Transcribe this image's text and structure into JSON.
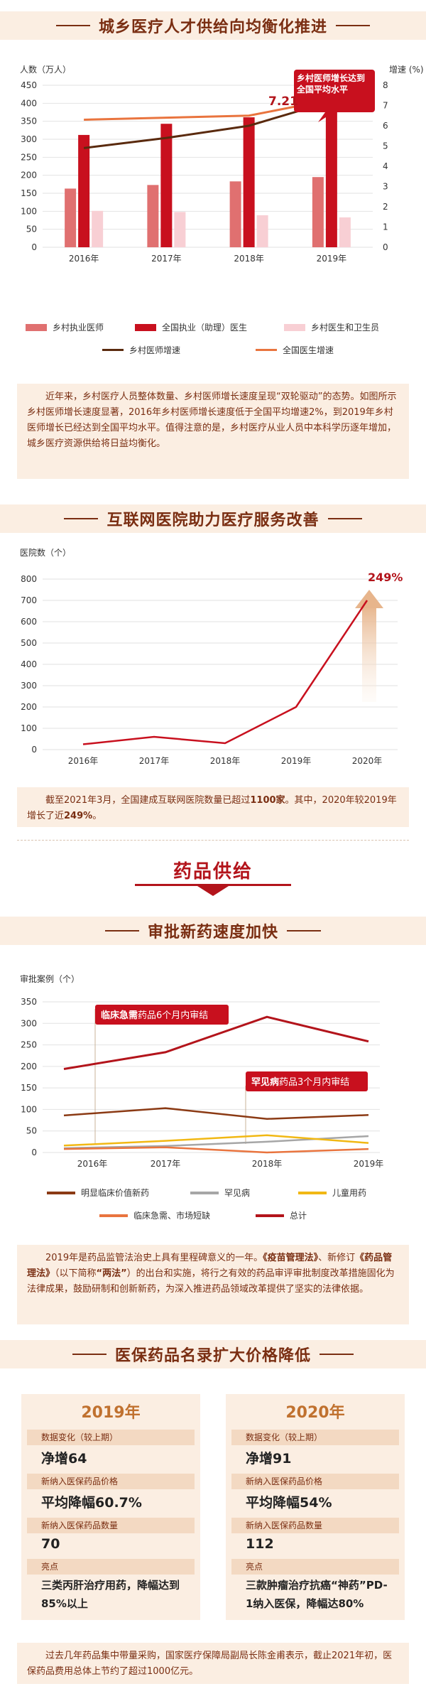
{
  "section1": {
    "title": "城乡医疗人才供给向均衡化推进",
    "left_axis_label": "人数（万人）",
    "right_axis_label": "增速 (%)",
    "callout": "乡村医师增长达到全国平均水平",
    "callout_value": "7.21",
    "legend": [
      "乡村执业医师",
      "全国执业（助理）医生",
      "乡村医生和卫生员",
      "乡村医师增速",
      "全国医生增速"
    ],
    "note": "近年来，乡村医疗人员整体数量、乡村医师增长速度呈现“双轮驱动”的态势。如图所示乡村医师增长速度显著，2016年乡村医师增长速度低于全国平均增速2%，到2019年乡村医师增长已经达到全国平均水平。值得注意的是，乡村医疗从业人员中本科学历逐年增加，城乡医疗资源供给将日益均衡化。"
  },
  "section2": {
    "title": "互联网医院助力医疗服务改善",
    "axis_label": "医院数（个）",
    "growth_label": "249%",
    "note_pre": "截至2021年3月，全国建成互联网医院数量已超过",
    "note_b1": "1100家",
    "note_mid": "。其中，2020年较2019年增长了近",
    "note_b2": "249%",
    "note_end": "。"
  },
  "supply": {
    "title": "药品供给"
  },
  "section3": {
    "title": "审批新药速度加快",
    "axis_label": "审批案例（个）",
    "callout1_bold": "临床急需",
    "callout1_rest": "药品6个月内审结",
    "callout2_bold": "罕见病",
    "callout2_rest": "药品3个月内审结",
    "legend": [
      "明显临床价值新药",
      "罕见病",
      "儿童用药",
      "临床急需、市场短缺",
      "总计"
    ],
    "note_p1": "2019年是药品监管法治史上具有里程碑意义的一年。",
    "note_b1": "《疫苗管理法》",
    "note_p2": "、新修订",
    "note_b2": "《药品管理法》",
    "note_p3": "（以下简称",
    "note_b3": "“两法”",
    "note_p4": "）的出台和实施，将行之有效的药品审评审批制度改革措施固化为法律成果，鼓励研制和创新新药，为深入推进药品领域改革提供了坚实的法律依据。"
  },
  "section4": {
    "title": "医保药品名录扩大价格降低",
    "cards": [
      {
        "year": "2019年",
        "l1": "数据变化（较上期）",
        "v1": "净增64",
        "l2": "新纳入医保药品价格",
        "v2": "平均降幅60.7%",
        "l3": "新纳入医保药品数量",
        "v3": "70",
        "l4": "亮点",
        "v4": "三类丙肝治疗用药，降幅达到85%以上"
      },
      {
        "year": "2020年",
        "l1": "数据变化（较上期）",
        "v1": "净增91",
        "l2": "新纳入医保药品价格",
        "v2": "平均降幅54%",
        "l3": "新纳入医保药品数量",
        "v3": "112",
        "l4": "亮点",
        "v4": "三款肿瘤治疗抗癌“神药”PD-1纳入医保，降幅达80%"
      }
    ],
    "note": "过去几年药品集中带量采购，国家医疗保障局副局长陈金甫表示，截止2021年初，医保药品费用总体上节约了超过1000亿元。"
  },
  "colors": {
    "brown_title": "#7a2e12",
    "red": "#b3141b",
    "pink": "#e07070",
    "light_pink": "#f8cfd4",
    "dark_brown": "#5a2a0e",
    "orange": "#e9743e",
    "bar_red": "#c8101e",
    "gray": "#a6a6a6",
    "yellow": "#f1b814",
    "bg": "#fbeee2"
  },
  "chart_data": [
    {
      "type": "bar",
      "categories": [
        "2016年",
        "2017年",
        "2018年",
        "2019年"
      ],
      "series": [
        {
          "name": "乡村执业医师",
          "values": [
            163,
            173,
            183,
            195
          ]
        },
        {
          "name": "全国执业（助理）医生",
          "values": [
            312,
            343,
            361,
            392
          ]
        },
        {
          "name": "乡村医生和卫生员",
          "values": [
            101,
            98,
            89,
            83
          ]
        },
        {
          "name": "乡村医师增速",
          "axis": "right",
          "values": [
            4.9,
            5.4,
            6.0,
            7.21
          ]
        },
        {
          "name": "全国医生增速",
          "axis": "right",
          "values": [
            6.3,
            6.4,
            6.5,
            7.3
          ]
        }
      ],
      "ylim": [
        0,
        450
      ],
      "yticks": [
        0,
        50,
        100,
        150,
        200,
        250,
        300,
        350,
        400,
        450
      ],
      "y2lim": [
        0,
        8
      ],
      "y2ticks": [
        0,
        1,
        2,
        3,
        4,
        5,
        6,
        7,
        8
      ],
      "ylabel": "人数（万人）",
      "y2label": "增速 (%)"
    },
    {
      "type": "line",
      "categories": [
        "2016年",
        "2017年",
        "2018年",
        "2019年",
        "2020年"
      ],
      "series": [
        {
          "values": [
            25,
            60,
            30,
            200,
            700
          ]
        }
      ],
      "ylim": [
        0,
        800
      ],
      "yticks": [
        0,
        100,
        200,
        300,
        400,
        500,
        600,
        700,
        800
      ],
      "ylabel": "医院数（个）"
    },
    {
      "type": "line",
      "categories": [
        "2016年",
        "2017年",
        "2018年",
        "2019年"
      ],
      "series": [
        {
          "name": "明显临床价值新药",
          "values": [
            86,
            103,
            78,
            87
          ]
        },
        {
          "name": "罕见病",
          "values": [
            10,
            15,
            25,
            38
          ]
        },
        {
          "name": "儿童用药",
          "values": [
            16,
            27,
            40,
            22
          ]
        },
        {
          "name": "临床急需、市场短缺",
          "values": [
            8,
            12,
            0,
            8
          ]
        },
        {
          "name": "总计",
          "values": [
            194,
            233,
            315,
            258
          ]
        }
      ],
      "ylim": [
        0,
        350
      ],
      "yticks": [
        0,
        50,
        100,
        150,
        200,
        250,
        300,
        350
      ],
      "ylabel": "审批案例（个）"
    }
  ]
}
